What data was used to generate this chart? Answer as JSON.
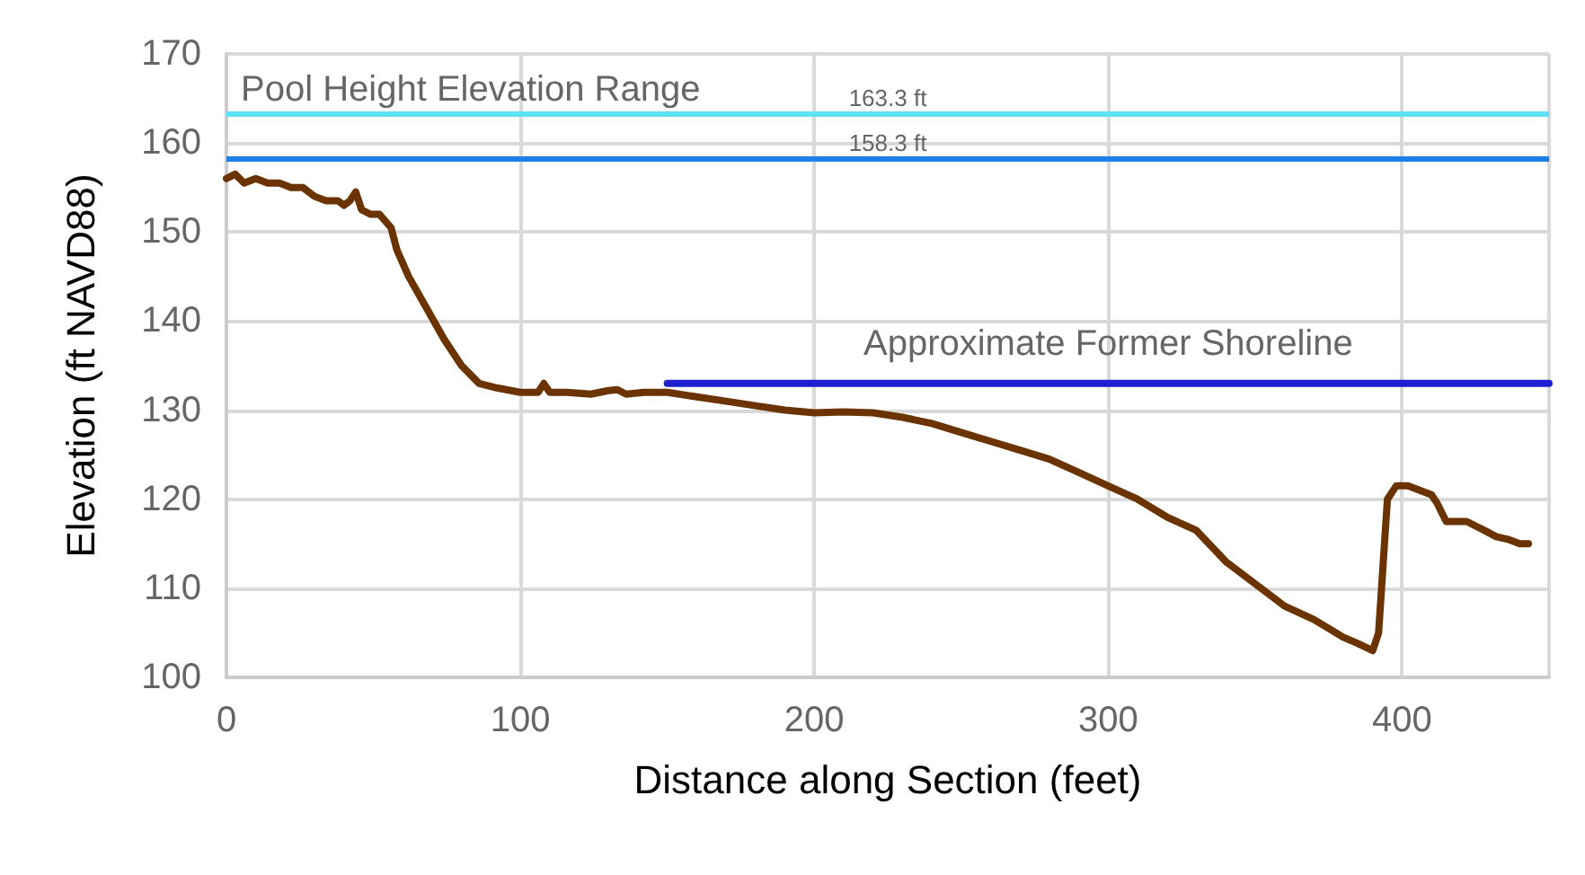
{
  "chart_data": {
    "type": "line",
    "xlabel": "Distance along Section (feet)",
    "ylabel": "Elevation (ft NAVD88)",
    "xlim": [
      0,
      450
    ],
    "xticks": [
      0,
      100,
      200,
      300,
      400
    ],
    "ylim": [
      100,
      170
    ],
    "yticks": [
      100,
      110,
      120,
      130,
      140,
      150,
      160,
      170
    ],
    "grid": true,
    "legend": false,
    "marker": "none",
    "line_style": "solid",
    "annotations": [
      "Pool Height Elevation Range"
    ],
    "ref_lines": [
      {
        "axis": "y",
        "value": 163.3,
        "label": "163.3 ft",
        "color": "#5ce1f7"
      },
      {
        "axis": "y",
        "value": 158.3,
        "label": "158.3 ft",
        "color": "#1e7fe6"
      }
    ],
    "series": [
      {
        "color": "#6b3300",
        "x": [
          0,
          3,
          6,
          10,
          14,
          18,
          22,
          26,
          30,
          34,
          38,
          40,
          42,
          44,
          46,
          49,
          52,
          56,
          58,
          62,
          68,
          74,
          80,
          86,
          92,
          100,
          106,
          108,
          110,
          116,
          124,
          130,
          133,
          136,
          142,
          150,
          160,
          170,
          180,
          190,
          200,
          210,
          220,
          230,
          240,
          250,
          260,
          270,
          280,
          290,
          300,
          310,
          320,
          330,
          340,
          350,
          360,
          370,
          380,
          385,
          390,
          392,
          394,
          395,
          398,
          402,
          406,
          410,
          412,
          415,
          418,
          422,
          425,
          428,
          432,
          436,
          440,
          443
        ],
        "values": [
          156,
          156.5,
          155.5,
          156,
          155.5,
          155.5,
          155,
          155,
          154,
          153.5,
          153.5,
          153,
          153.5,
          154.5,
          152.5,
          152,
          152,
          150.5,
          148,
          145,
          141.5,
          138,
          135,
          133,
          132.5,
          132,
          132,
          133,
          132,
          132,
          131.8,
          132.2,
          132.3,
          131.8,
          132,
          132,
          131.5,
          131,
          130.5,
          130,
          129.7,
          129.8,
          129.7,
          129.2,
          128.5,
          127.5,
          126.5,
          125.5,
          124.5,
          123,
          121.5,
          120,
          118,
          116.5,
          113,
          110.5,
          108,
          106.5,
          104.5,
          103.8,
          103,
          105,
          115,
          120,
          121.5,
          121.5,
          121,
          120.5,
          119.5,
          117.5,
          117.5,
          117.5,
          117,
          116.5,
          115.8,
          115.5,
          115,
          115
        ]
      },
      {
        "name": "Approximate Former Shoreline",
        "color": "#2020d0",
        "x": [
          150,
          450
        ],
        "values": [
          133,
          133
        ]
      }
    ]
  }
}
